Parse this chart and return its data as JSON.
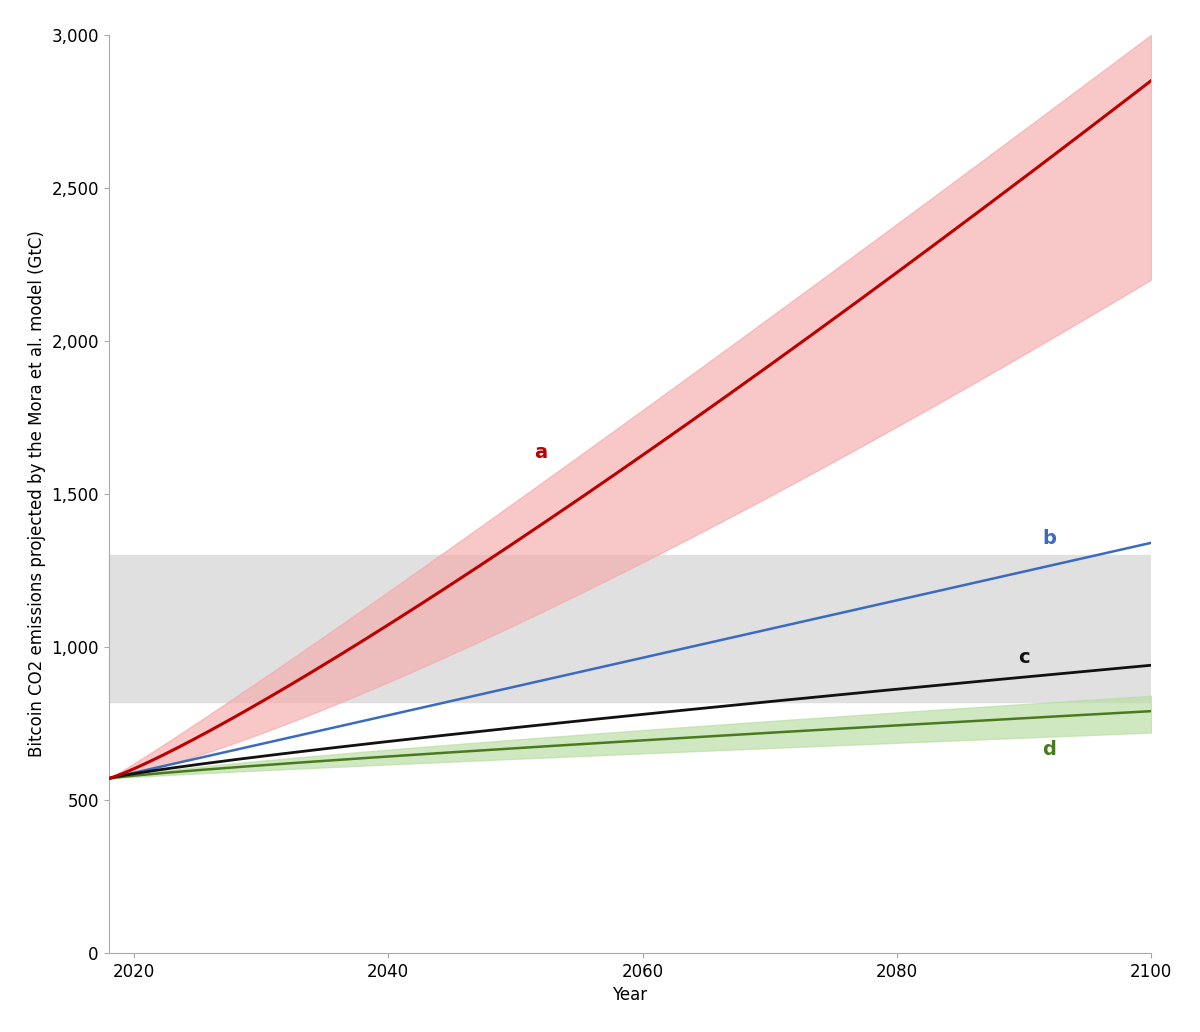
{
  "title": "",
  "xlabel": "Year",
  "ylabel": "Bitcoin CO2 emissions projected by the Mora et al. model (GtC)",
  "xlim": [
    2018,
    2100
  ],
  "ylim": [
    0,
    3000
  ],
  "xticks": [
    2020,
    2040,
    2060,
    2080,
    2100
  ],
  "yticks": [
    0,
    500,
    1000,
    1500,
    2000,
    2500,
    3000
  ],
  "x_start": 2018,
  "x_end": 2100,
  "background_color": "#ffffff",
  "gray_band_ymin": 820,
  "gray_band_ymax": 1300,
  "gray_band_color": "#e0e0e0",
  "line_a_color": "#bb0000",
  "line_a_band_color": "#f5aaaa",
  "line_b_color": "#3a6bbf",
  "line_c_color": "#111111",
  "line_d_color": "#4a7a20",
  "line_d_band_color": "#b8dda0",
  "label_a": "a",
  "label_b": "b",
  "label_c": "c",
  "label_d": "d",
  "label_a_color": "#bb0000",
  "label_b_color": "#3a6bbf",
  "label_c_color": "#111111",
  "label_d_color": "#4a7a20",
  "label_fontsize": 14,
  "axis_label_fontsize": 12,
  "tick_fontsize": 12,
  "spine_color": "#aaaaaa"
}
